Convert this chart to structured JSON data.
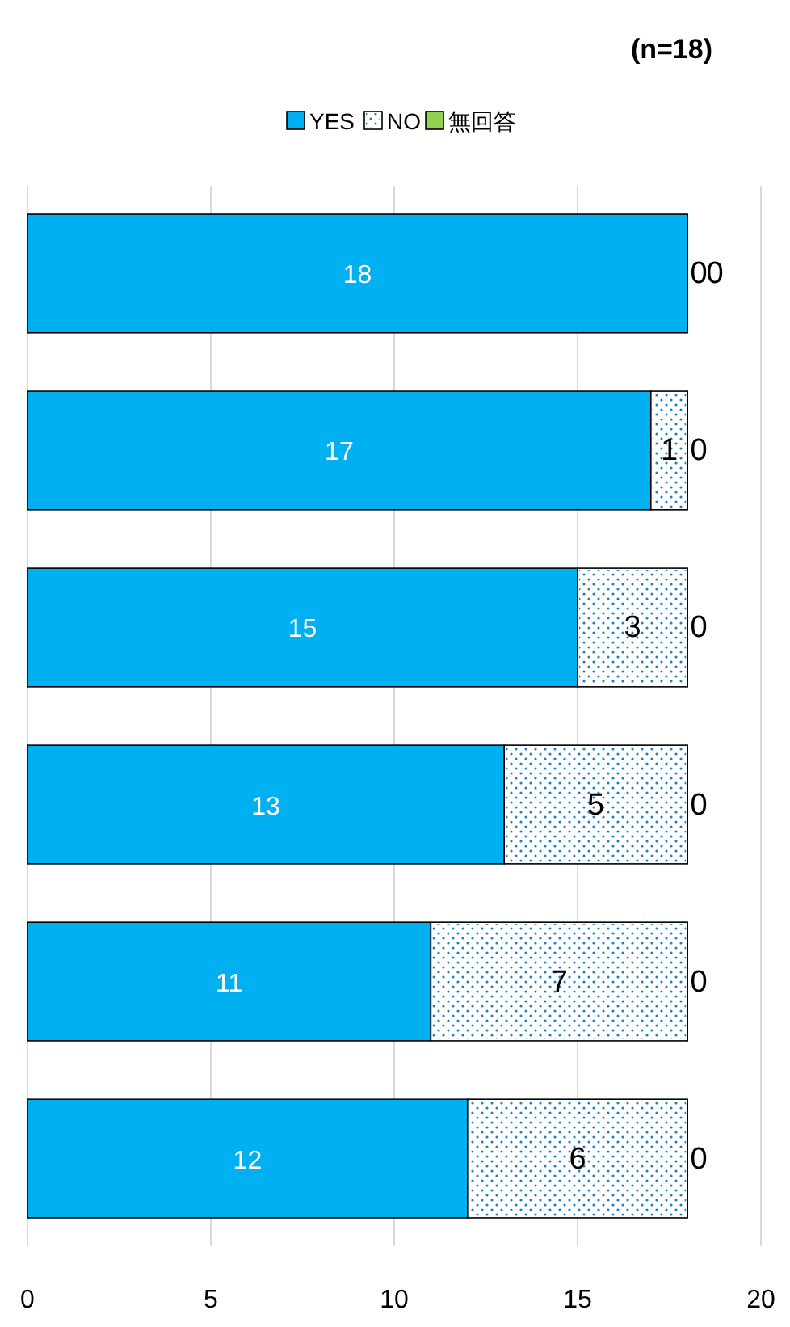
{
  "chart_data": {
    "type": "bar",
    "orientation": "horizontal",
    "stacked": true,
    "title": "(n=18)",
    "categories": [
      null,
      null,
      null,
      null,
      null,
      null
    ],
    "series": [
      {
        "name": "YES",
        "color": "#00b0f0",
        "values": [
          18,
          17,
          15,
          13,
          11,
          12
        ]
      },
      {
        "name": "NO",
        "color": "#ffffff",
        "values": [
          0,
          1,
          3,
          5,
          7,
          6
        ]
      },
      {
        "name": "無回答",
        "color": "#92d050",
        "values": [
          0,
          0,
          0,
          0,
          0,
          0
        ]
      }
    ],
    "xlim": [
      0,
      20
    ],
    "xticks": [
      0,
      5,
      10,
      15,
      20
    ],
    "grid": "x",
    "legend": "top",
    "data_labels": true
  }
}
